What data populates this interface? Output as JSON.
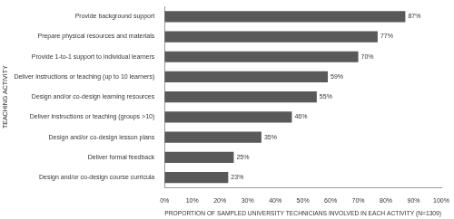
{
  "chart_data": {
    "type": "bar",
    "orientation": "horizontal",
    "x_label": "PROPORTION OF SAMPLED UNIVERSITY TECHNICIANS INVOLVED IN EACH ACTIVITY (N=1309)",
    "y_label": "TEACHING ACTIVITY",
    "categories": [
      "Provide background support",
      "Prepare physical resources and materials",
      "Provide 1-to-1 support to individual learners",
      "Deliver instructions or teaching (up to 10 learners)",
      "Design and/or co-design learning resources",
      "Deliver instructions or teaching (groups >10)",
      "Design and/or co-design lesson plans",
      "Deliver formal feedback",
      "Design and/or co-design course curricula"
    ],
    "values": [
      87,
      77,
      70,
      59,
      55,
      46,
      35,
      25,
      23
    ],
    "value_labels": [
      "87%",
      "77%",
      "70%",
      "59%",
      "55%",
      "46%",
      "35%",
      "25%",
      "23%"
    ],
    "data_labels": true,
    "color": "#595959",
    "xlim": [
      0,
      100
    ],
    "xticks": [
      {
        "value": 0,
        "label": "0%"
      },
      {
        "value": 10,
        "label": "10%"
      },
      {
        "value": 20,
        "label": "20%"
      },
      {
        "value": 30,
        "label": "30%"
      },
      {
        "value": 40,
        "label": "40%"
      },
      {
        "value": 50,
        "label": "50%"
      },
      {
        "value": 60,
        "label": "60%"
      },
      {
        "value": 70,
        "label": "70%"
      },
      {
        "value": 80,
        "label": "80%"
      },
      {
        "value": 90,
        "label": "90%"
      },
      {
        "value": 100,
        "label": "100%"
      }
    ],
    "grid": false
  }
}
